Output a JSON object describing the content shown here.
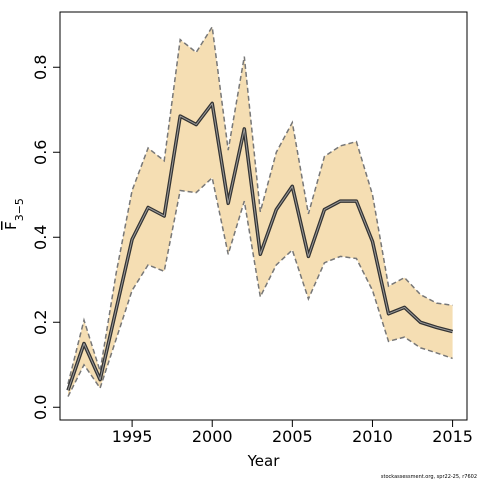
{
  "chart_data": {
    "type": "line",
    "title": "",
    "xlabel": "Year",
    "ylabel": "F",
    "ylabel_subscript": "3−5",
    "xlim": [
      1990.5,
      2015.9
    ],
    "ylim": [
      -0.03,
      0.93
    ],
    "x_ticks": [
      1995,
      2000,
      2005,
      2010,
      2015
    ],
    "y_ticks": [
      0.0,
      0.2,
      0.4,
      0.6,
      0.8
    ],
    "y_tick_labels": [
      "0.0",
      "0.2",
      "0.4",
      "0.6",
      "0.8"
    ],
    "grid": false,
    "band_color": "#f5deb3",
    "band_edge_color": "#777777",
    "line_color": "#333333",
    "series": [
      {
        "x": [
          1991,
          1992,
          1993,
          1994,
          1995,
          1996,
          1997,
          1998,
          1999,
          2000,
          2001,
          2002,
          2003,
          2004,
          2005,
          2006,
          2007,
          2008,
          2009,
          2010,
          2011,
          2012,
          2013,
          2014,
          2015
        ],
        "values": [
          0.04,
          0.15,
          0.065,
          0.23,
          0.395,
          0.47,
          0.45,
          0.685,
          0.665,
          0.715,
          0.48,
          0.655,
          0.36,
          0.465,
          0.52,
          0.355,
          0.465,
          0.485,
          0.485,
          0.39,
          0.22,
          0.235,
          0.2,
          0.188,
          0.178
        ],
        "upper": [
          0.055,
          0.205,
          0.085,
          0.315,
          0.51,
          0.61,
          0.58,
          0.865,
          0.835,
          0.895,
          0.605,
          0.825,
          0.46,
          0.6,
          0.67,
          0.455,
          0.59,
          0.615,
          0.625,
          0.5,
          0.285,
          0.305,
          0.265,
          0.245,
          0.24
        ],
        "lower": [
          0.025,
          0.1,
          0.045,
          0.16,
          0.275,
          0.335,
          0.32,
          0.51,
          0.505,
          0.54,
          0.36,
          0.485,
          0.26,
          0.335,
          0.37,
          0.255,
          0.34,
          0.355,
          0.35,
          0.275,
          0.155,
          0.165,
          0.14,
          0.128,
          0.115
        ]
      }
    ]
  },
  "footnote": "stockassessment.org, spr22-25, r7602"
}
